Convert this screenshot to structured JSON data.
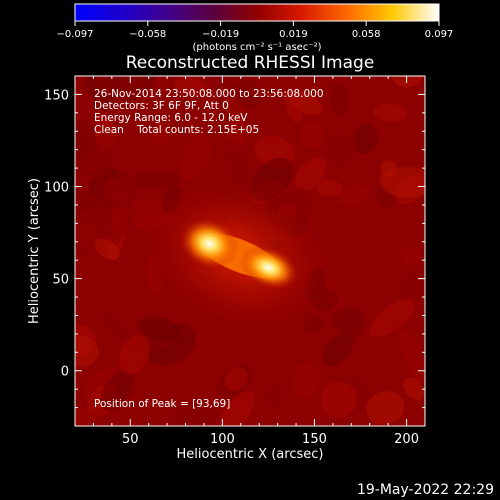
{
  "chart_data": {
    "type": "heatmap",
    "title": "Reconstructed RHESSI Image",
    "xlabel": "Heliocentric X (arcsec)",
    "ylabel": "Heliocentric Y (arcsec)",
    "xlim": [
      20,
      210
    ],
    "ylim": [
      -30,
      160
    ],
    "xticks": [
      50,
      100,
      150,
      200
    ],
    "yticks": [
      0,
      50,
      100,
      150
    ],
    "colormap": "red-temperature (black-blue-purple-red-orange-yellow-white)",
    "colorbar": {
      "range": [
        -0.097,
        0.097
      ],
      "tick_labels": [
        "−0.097",
        "−0.058",
        "−0.019",
        "0.019",
        "0.058",
        "0.097"
      ],
      "unit_label": "(photons cm⁻² s⁻¹ asec⁻²)"
    },
    "sources": [
      {
        "x": 93,
        "y": 69,
        "relative_intensity": 1.0
      },
      {
        "x": 125,
        "y": 56,
        "relative_intensity": 0.9
      }
    ],
    "peak": {
      "x": 93,
      "y": 69
    },
    "annotations": {
      "time_range": "26-Nov-2014 23:50:08.000 to 23:56:08.000",
      "detectors": "Detectors: 3F 6F 9F, Att 0",
      "energy": "Energy Range: 6.0 - 12.0 keV",
      "clean": "Clean    Total counts: 2.15E+05",
      "peak_text": "Position of Peak = [93,69]"
    },
    "timestamp": "19-May-2022 22:29"
  },
  "colors": {
    "background": "#000000",
    "text": "#ffffff",
    "map_base": "#8c0000"
  }
}
